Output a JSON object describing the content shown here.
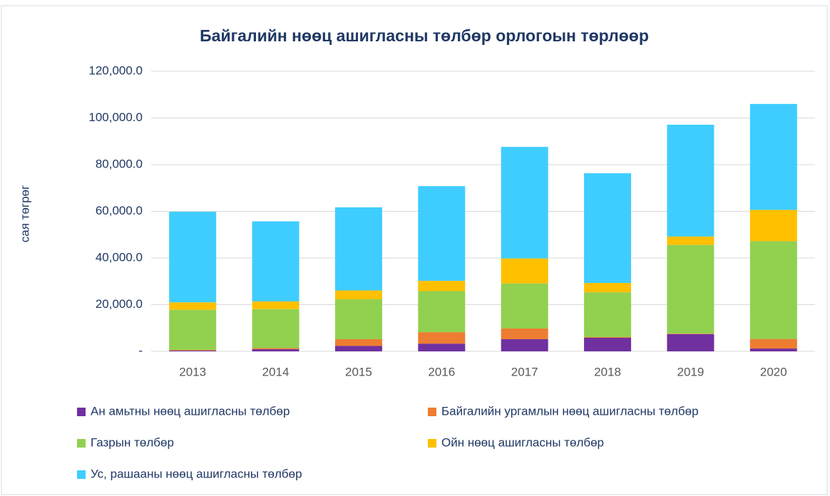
{
  "chart_data": {
    "type": "stacked_bar",
    "title": "Байгалийн нөөц ашигласны төлбөр орлогоын төрлөөр",
    "y_label": "сая төгрөг",
    "categories": [
      "2013",
      "2014",
      "2015",
      "2016",
      "2017",
      "2018",
      "2019",
      "2020"
    ],
    "series": [
      {
        "name": "Ан амьтны нөөц ашигласны төлбөр",
        "color": "#7030a0",
        "values": [
          300,
          900,
          2300,
          3300,
          5200,
          5800,
          7400,
          1200
        ]
      },
      {
        "name": "Байгалийн ургамлын нөөц ашигласны төлбөр",
        "color": "#ed7d31",
        "values": [
          300,
          500,
          2900,
          4900,
          4600,
          300,
          200,
          4100
        ]
      },
      {
        "name": "Газрын төлбөр",
        "color": "#92d050",
        "values": [
          17200,
          16700,
          17100,
          17600,
          19300,
          19200,
          38000,
          41900
        ]
      },
      {
        "name": "Ойн нөөц ашигласны төлбөр",
        "color": "#ffc000",
        "values": [
          3200,
          3300,
          3800,
          4400,
          10700,
          4000,
          3600,
          13400
        ]
      },
      {
        "name": "Ус, рашааны нөөц ашигласны төлбөр",
        "color": "#3fcdff",
        "values": [
          38800,
          34300,
          35600,
          40600,
          47800,
          47000,
          47900,
          45400
        ]
      }
    ],
    "ylim": [
      0,
      120000
    ],
    "yticks": [
      {
        "value": 0,
        "label": "-"
      },
      {
        "value": 20000,
        "label": "20,000.0"
      },
      {
        "value": 40000,
        "label": "40,000.0"
      },
      {
        "value": 60000,
        "label": "60,000.0"
      },
      {
        "value": 80000,
        "label": "80,000.0"
      },
      {
        "value": 100000,
        "label": "100,000.0"
      },
      {
        "value": 120000,
        "label": "120,000.0"
      }
    ],
    "grid": true
  }
}
